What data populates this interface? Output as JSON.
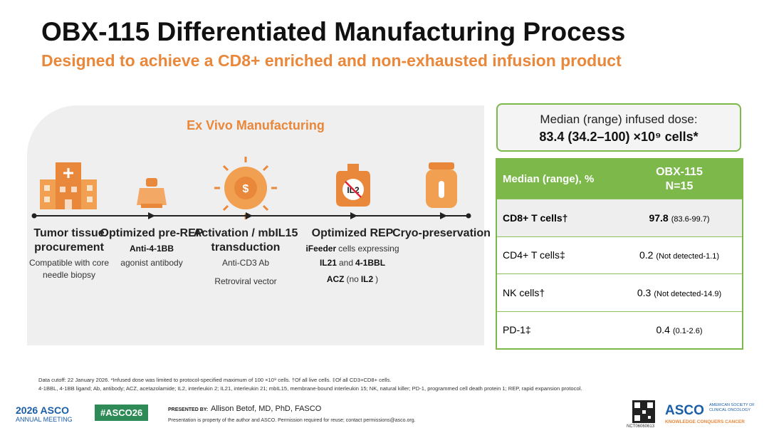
{
  "header": {
    "title": "OBX-115 Differentiated Manufacturing Process",
    "subtitle": "Designed to achieve a CD8+ enriched and non-exhausted infusion product"
  },
  "process": {
    "title": "Ex Vivo Manufacturing",
    "icon_label": "IL2",
    "steps": [
      {
        "title": "Tumor tissue procurement",
        "details": [
          [
            {
              "text": "Compatible with core needle biopsy"
            }
          ]
        ]
      },
      {
        "title": "Optimized pre-REP",
        "details": [
          [
            {
              "text": "Anti-4-1BB",
              "bold": true
            }
          ],
          [
            {
              "text": "agonist antibody"
            }
          ]
        ]
      },
      {
        "title": "Activation / mbIL15 transduction",
        "details": [
          [
            {
              "text": "Anti-CD3 Ab"
            }
          ],
          [
            {
              "text": "Retroviral vector"
            }
          ]
        ]
      },
      {
        "title": "Optimized REP",
        "details": [
          [
            {
              "text": "iFeeder",
              "bold": true
            },
            {
              "text": "cells expressing"
            }
          ],
          [
            {
              "text": "IL21",
              "bold": true
            },
            {
              "text": "and"
            },
            {
              "text": "4-1BBL",
              "bold": true
            }
          ],
          [
            {
              "text": "ACZ",
              "bold": true
            },
            {
              "text": "(no"
            },
            {
              "text": "IL2",
              "bold": true
            },
            {
              "text": ")"
            }
          ]
        ]
      },
      {
        "title": "Cryo-preservation",
        "details": []
      }
    ]
  },
  "dose": {
    "label": "Median (range) infused dose:",
    "value": "83.4 (34.2–100) ×10⁹ cells*"
  },
  "table": {
    "header": [
      "Median (range), %",
      "OBX-115",
      "N=15"
    ],
    "rows": [
      [
        "CD8+ T cells†",
        "97.8",
        "(83.6-99.7)"
      ],
      [
        "CD4+ T cells‡",
        "0.2",
        "(Not detected-1.1)"
      ],
      [
        "NK cells†",
        "0.3",
        "(Not detected-14.9)"
      ],
      [
        "PD-1‡",
        "0.4",
        "(0.1-2.6)"
      ]
    ]
  },
  "footnotes": [
    "Data cutoff: 22 January 2026. *Infused dose was limited to protocol-specified maximum of 100 ×10⁹ cells. †Of all live cells. ‡Of all CD3+CD8+ cells.",
    "4-1BBL, 4-1BB ligand; Ab, antibody; ACZ, acetazolamide; IL2, interleukin 2; IL21, interleukin 21; mbIL15, membrane-bound interleukin 15; NK, natural killer; PD-1, programmed cell death protein 1; REP, rapid expansion protocol."
  ],
  "footer": {
    "meeting_year": "2026 ASCO",
    "meeting_name": "ANNUAL MEETING",
    "hashtag": "#ASCO26",
    "presented_by": "PRESENTED BY:",
    "presenter": "Allison Betof, MD, PhD, FASCO",
    "notice": "Presentation is property of the author and ASCO. Permission required for reuse; contact permissions@asco.org.",
    "trial_id": "NCT06060613",
    "logo": "ASCO",
    "logo_org": "AMERICAN SOCIETY OF CLINICAL ONCOLOGY",
    "logo_tagline": "KNOWLEDGE CONQUERS CANCER"
  }
}
